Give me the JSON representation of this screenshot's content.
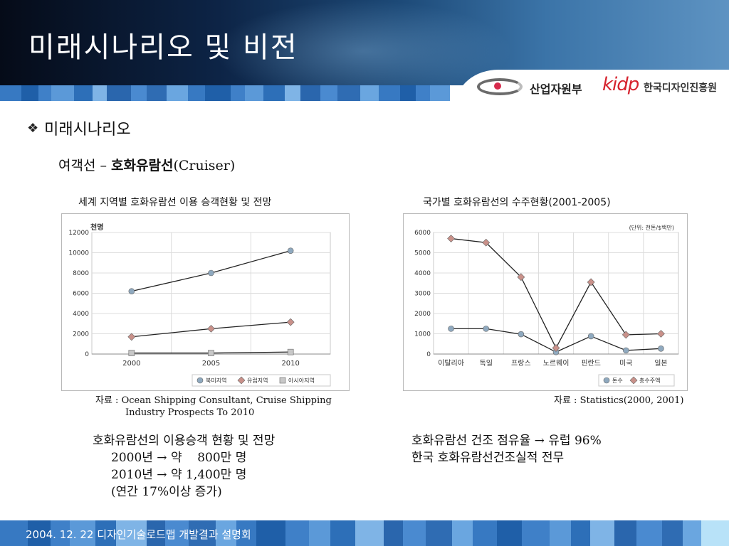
{
  "slide": {
    "title": "미래시나리오 및 비전",
    "logo_mot": "산업자원부",
    "logo_kidp": "kidp",
    "logo_kidp_name": "한국디자인진흥원",
    "bullet_icon": "diamond-bullet-icon",
    "bullet": "미래시나리오",
    "subhead_prefix": "여객선 – ",
    "subhead_bold": "호화유람선",
    "subhead_suffix": "(Cruiser)",
    "footer": "2004. 12. 22 디자인기술로드맵 개발결과 설명회"
  },
  "left_panel": {
    "chart_title": "세계 지역별 호화유람선 이용 승객현황 및 전망",
    "source_line1": "자료 : Ocean Shipping Consultant, Cruise Shipping",
    "source_line2": "Industry Prospects To 2010",
    "notes": [
      "호화유람선의 이용승객 현황 및 전망",
      "2000년 → 약    800만 명",
      "2010년 → 약 1,400만 명",
      "(연간 17%이상 증가)"
    ]
  },
  "right_panel": {
    "chart_title": "국가별 호화유람선의 수주현황(2001-2005)",
    "source": "자료 : Statistics(2000, 2001)",
    "notes": [
      "호화유람선 건조 점유율 → 유럽 96%",
      "한국 호화유람선건조실적 전무"
    ]
  },
  "chart_data": [
    {
      "type": "line",
      "unit_label": "천명",
      "categories": [
        "2000",
        "2005",
        "2010"
      ],
      "ylim": [
        0,
        12000
      ],
      "yticks": [
        0,
        2000,
        4000,
        6000,
        8000,
        10000,
        12000
      ],
      "grid": true,
      "legend_position": "bottom-right",
      "series": [
        {
          "name": "북미지역",
          "values": [
            6200,
            8000,
            10200
          ],
          "color": "#8fa9bf",
          "marker": "circle"
        },
        {
          "name": "유럽지역",
          "values": [
            1700,
            2500,
            3150
          ],
          "color": "#c9918a",
          "marker": "diamond"
        },
        {
          "name": "아시아지역",
          "values": [
            100,
            100,
            200
          ],
          "color": "#c8c8c8",
          "marker": "square"
        }
      ]
    },
    {
      "type": "line",
      "unit_label": "(단위: 천톤/$백만)",
      "categories": [
        "이탈리아",
        "독일",
        "프랑스",
        "노르웨이",
        "핀란드",
        "미국",
        "일본"
      ],
      "ylim": [
        0,
        6000
      ],
      "yticks": [
        0,
        1000,
        2000,
        3000,
        4000,
        5000,
        6000
      ],
      "grid": true,
      "legend_position": "bottom-right",
      "series": [
        {
          "name": "톤수",
          "values": [
            1250,
            1250,
            980,
            100,
            880,
            180,
            270
          ],
          "color": "#8fa9bf",
          "marker": "circle"
        },
        {
          "name": "총수주액",
          "values": [
            5700,
            5500,
            3800,
            300,
            3550,
            950,
            1000
          ],
          "color": "#c9918a",
          "marker": "diamond"
        }
      ]
    }
  ]
}
